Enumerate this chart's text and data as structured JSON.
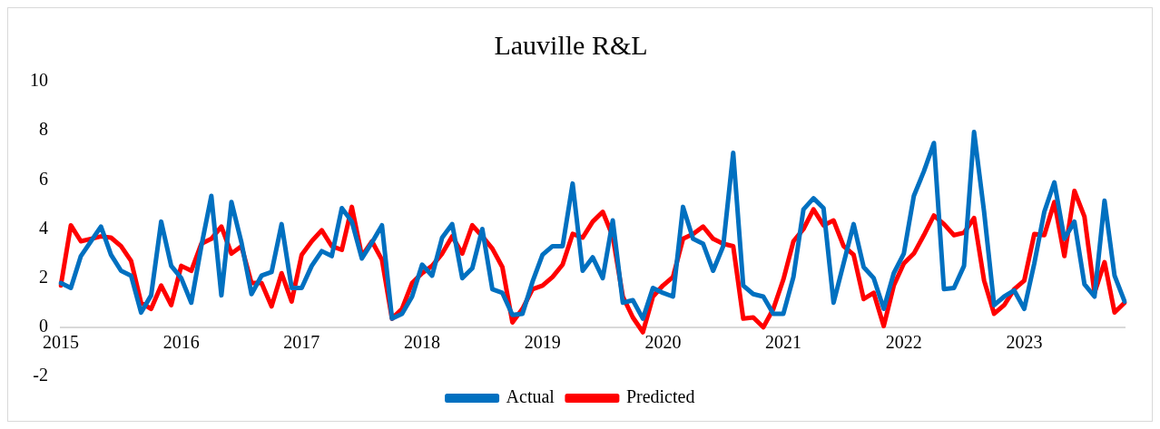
{
  "chart_data": {
    "type": "line",
    "title": "Lauville R&L",
    "categories": [
      "2015",
      null,
      null,
      null,
      null,
      null,
      null,
      null,
      null,
      null,
      null,
      null,
      "2016",
      null,
      null,
      null,
      null,
      null,
      null,
      null,
      null,
      null,
      null,
      null,
      "2017",
      null,
      null,
      null,
      null,
      null,
      null,
      null,
      null,
      null,
      null,
      null,
      "2018",
      null,
      null,
      null,
      null,
      null,
      null,
      null,
      null,
      null,
      null,
      null,
      "2019",
      null,
      null,
      null,
      null,
      null,
      null,
      null,
      null,
      null,
      null,
      null,
      "2020",
      null,
      null,
      null,
      null,
      null,
      null,
      null,
      null,
      null,
      null,
      null,
      "2021",
      null,
      null,
      null,
      null,
      null,
      null,
      null,
      null,
      null,
      null,
      null,
      "2022",
      null,
      null,
      null,
      null,
      null,
      null,
      null,
      null,
      null,
      null,
      null,
      "2023",
      null,
      null,
      null,
      null,
      null,
      null,
      null,
      null,
      null,
      null
    ],
    "series": [
      {
        "name": "Actual",
        "color": "#0070c0",
        "values": [
          1.8,
          1.6,
          2.9,
          3.5,
          4.1,
          2.95,
          2.3,
          2.1,
          0.6,
          1.3,
          4.3,
          2.5,
          2.0,
          1.0,
          3.3,
          5.35,
          1.3,
          5.1,
          3.45,
          1.35,
          2.1,
          2.25,
          4.2,
          1.6,
          1.6,
          2.5,
          3.1,
          2.9,
          4.85,
          4.3,
          2.8,
          3.45,
          4.15,
          0.35,
          0.55,
          1.25,
          2.55,
          2.1,
          3.65,
          4.2,
          2.0,
          2.4,
          4.0,
          1.55,
          1.4,
          0.5,
          0.55,
          1.85,
          2.95,
          3.3,
          3.3,
          5.85,
          2.3,
          2.85,
          2.0,
          4.35,
          1.0,
          1.1,
          0.35,
          1.6,
          1.4,
          1.25,
          4.9,
          3.6,
          3.4,
          2.3,
          3.3,
          7.1,
          1.7,
          1.35,
          1.25,
          0.55,
          0.55,
          2.05,
          4.8,
          5.25,
          4.85,
          1.0,
          2.6,
          4.2,
          2.45,
          2.0,
          0.75,
          2.2,
          3.0,
          5.35,
          6.35,
          7.5,
          1.55,
          1.6,
          2.5,
          7.95,
          4.7,
          0.9,
          1.25,
          1.5,
          0.75,
          2.6,
          4.7,
          5.9,
          3.6,
          4.3,
          1.75,
          1.25,
          5.15,
          2.1,
          1.05
        ]
      },
      {
        "name": "Predicted",
        "color": "#ff0000",
        "values": [
          1.7,
          4.15,
          3.5,
          3.6,
          3.7,
          3.65,
          3.3,
          2.7,
          1.0,
          0.75,
          1.7,
          0.9,
          2.5,
          2.3,
          3.4,
          3.6,
          4.1,
          3.0,
          3.3,
          1.8,
          1.8,
          0.85,
          2.2,
          1.05,
          2.95,
          3.5,
          3.95,
          3.3,
          3.15,
          4.9,
          2.9,
          3.5,
          2.75,
          0.35,
          0.75,
          1.8,
          2.2,
          2.5,
          3.0,
          3.7,
          3.0,
          4.15,
          3.7,
          3.2,
          2.45,
          0.2,
          0.75,
          1.55,
          1.7,
          2.05,
          2.55,
          3.8,
          3.65,
          4.3,
          4.7,
          3.7,
          1.25,
          0.4,
          -0.2,
          1.25,
          1.7,
          2.05,
          3.6,
          3.8,
          4.1,
          3.6,
          3.4,
          3.3,
          0.35,
          0.4,
          0.0,
          0.75,
          1.95,
          3.5,
          4.0,
          4.8,
          4.15,
          4.35,
          3.3,
          2.95,
          1.15,
          1.4,
          0.05,
          1.7,
          2.6,
          3.0,
          3.75,
          4.55,
          4.2,
          3.75,
          3.85,
          4.45,
          1.9,
          0.55,
          0.9,
          1.55,
          1.9,
          3.8,
          3.75,
          5.1,
          2.9,
          5.55,
          4.5,
          1.4,
          2.65,
          0.6,
          1.0
        ]
      }
    ],
    "ylim": [
      -2,
      10
    ],
    "yticks": [
      -2,
      0,
      2,
      4,
      6,
      8,
      10
    ],
    "legend": "bottom"
  }
}
